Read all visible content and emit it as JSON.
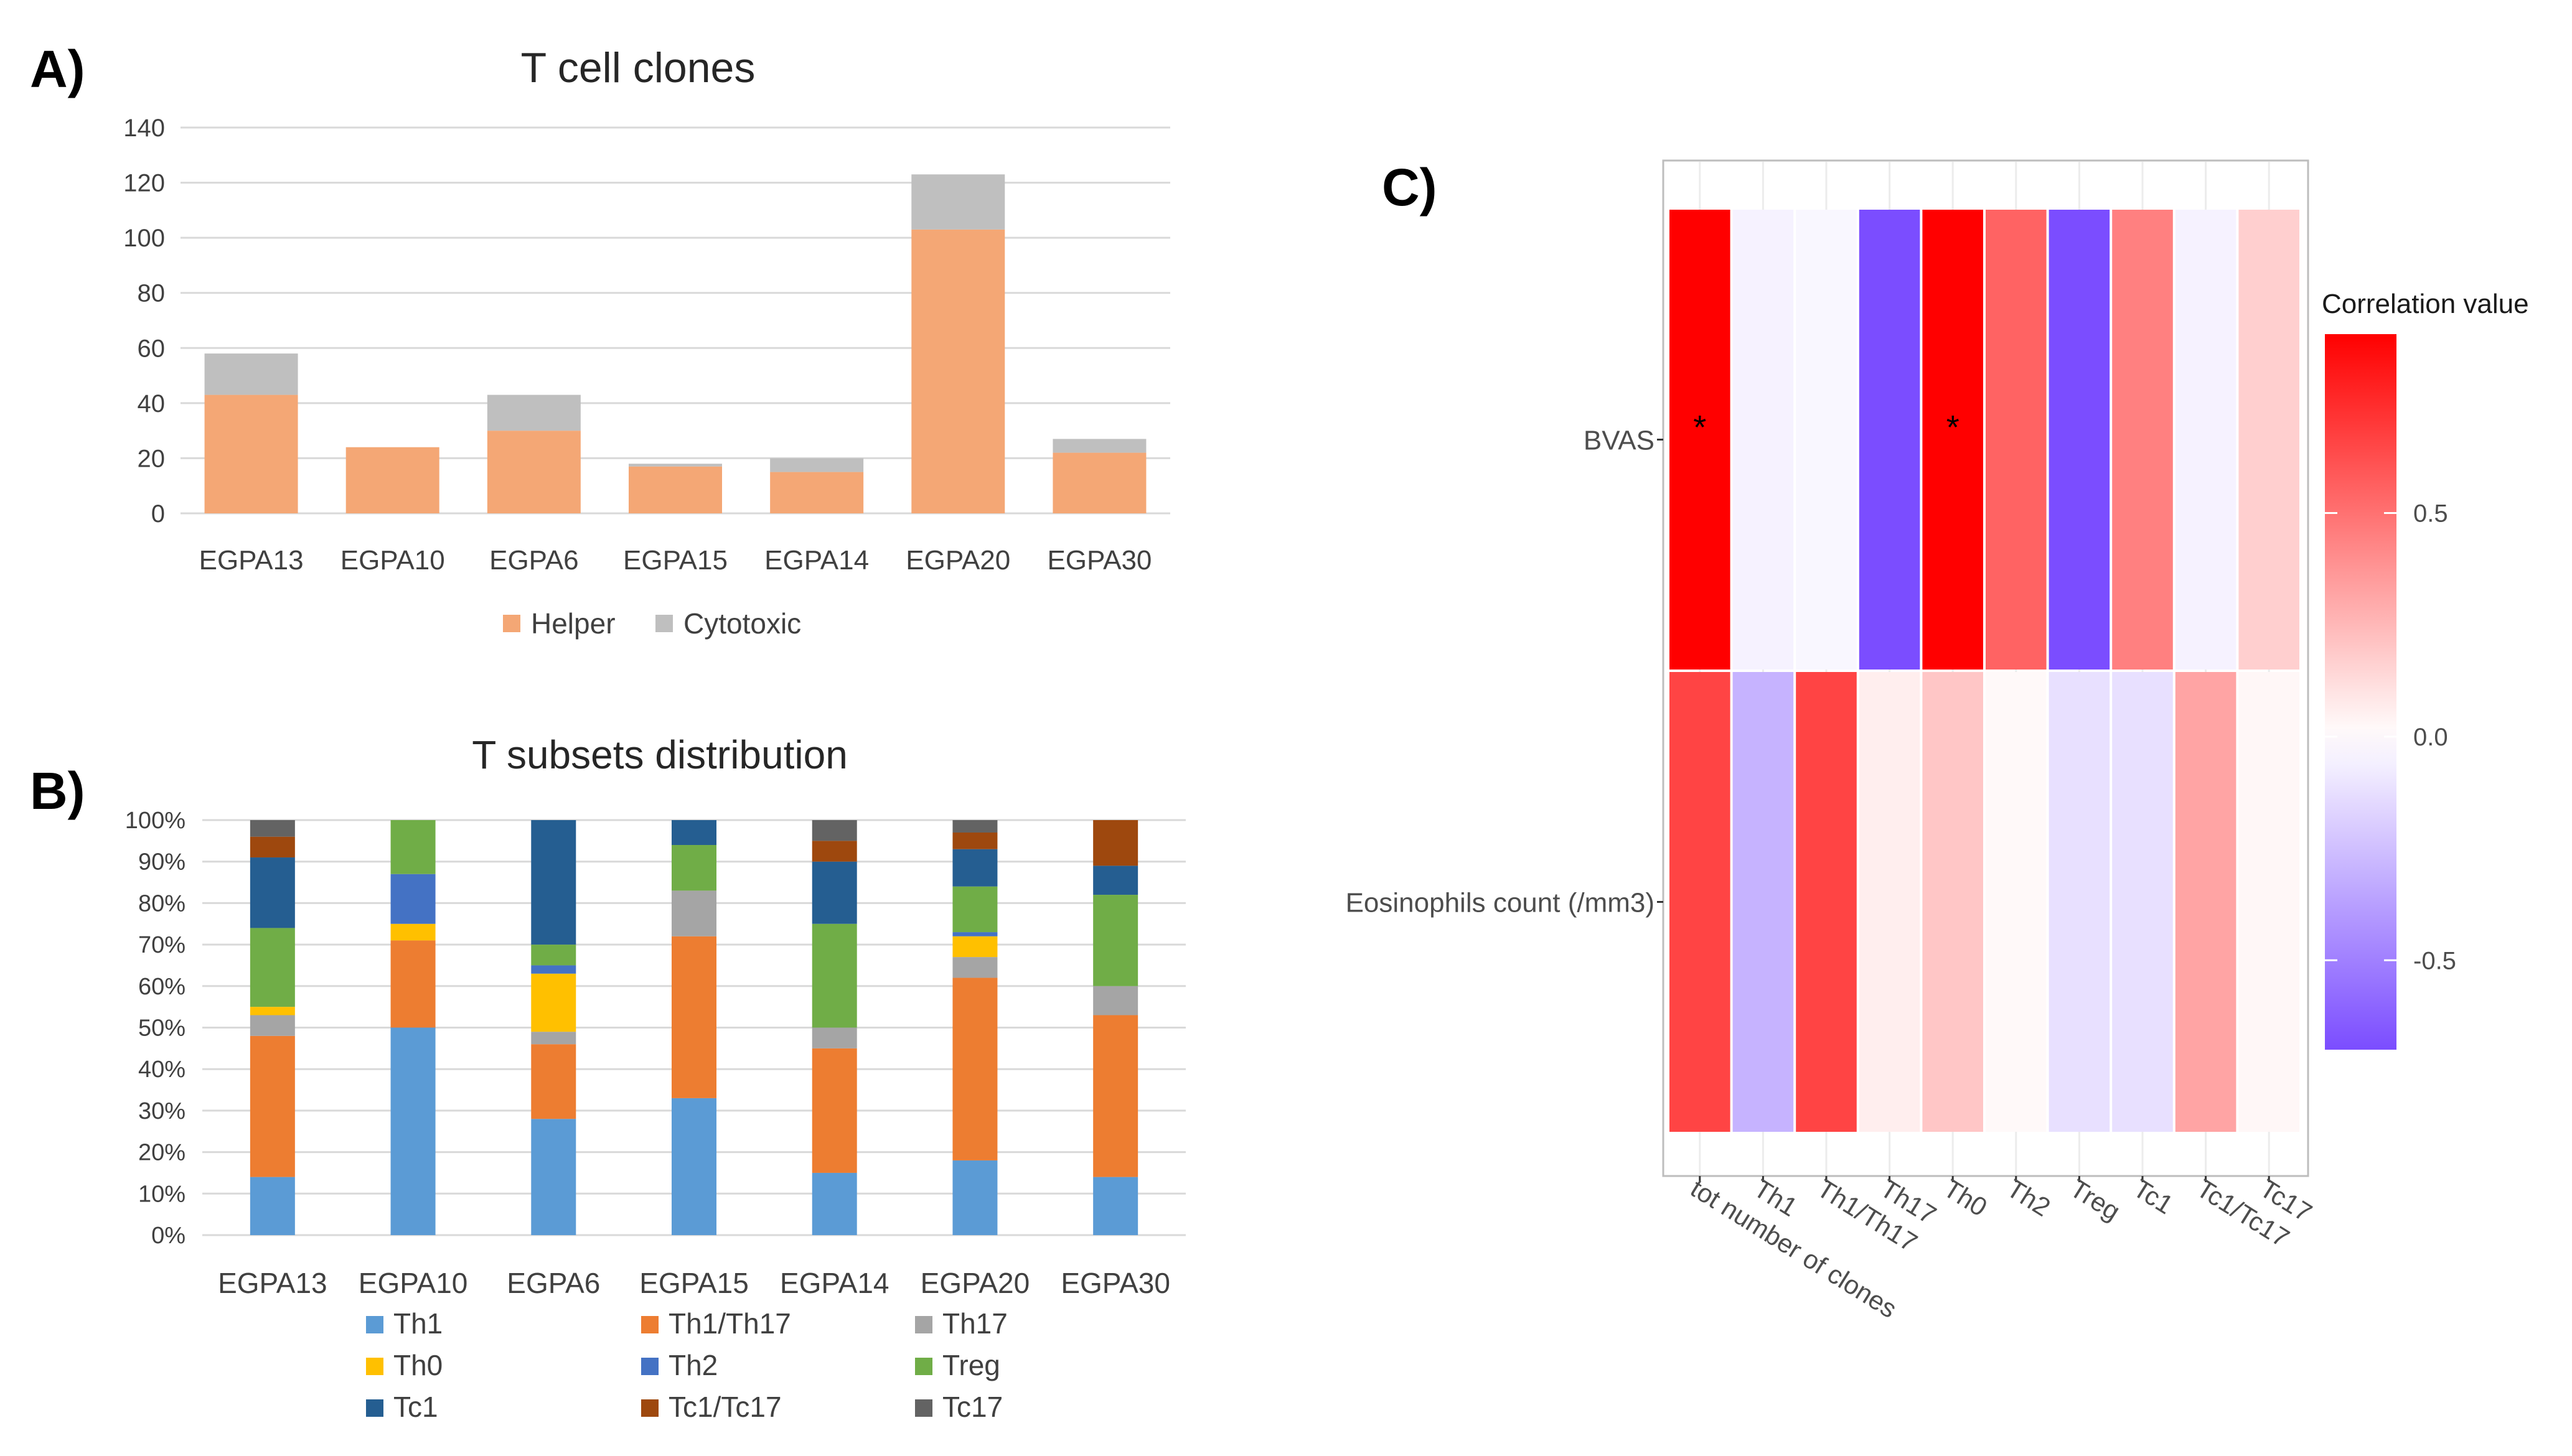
{
  "panels": {
    "a": "A)",
    "b": "B)",
    "c": "C)"
  },
  "chart_data": [
    {
      "id": "A",
      "type": "bar",
      "stacked": true,
      "title": "T cell clones",
      "categories": [
        "EGPA13",
        "EGPA10",
        "EGPA6",
        "EGPA15",
        "EGPA14",
        "EGPA20",
        "EGPA30"
      ],
      "series": [
        {
          "name": "Helper",
          "color": "#F4A775",
          "values": [
            43,
            24,
            30,
            17,
            15,
            103,
            22
          ]
        },
        {
          "name": "Cytotoxic",
          "color": "#BFBFBF",
          "values": [
            15,
            0,
            13,
            1,
            5,
            20,
            5
          ]
        }
      ],
      "ylim": [
        0,
        140
      ],
      "yticks": [
        "0",
        "20",
        "40",
        "60",
        "80",
        "100",
        "120",
        "140"
      ],
      "grid": true,
      "legend": "bottom"
    },
    {
      "id": "B",
      "type": "bar",
      "stacked": true,
      "percent": true,
      "title": "T subsets distribution",
      "categories": [
        "EGPA13",
        "EGPA10",
        "EGPA6",
        "EGPA15",
        "EGPA14",
        "EGPA20",
        "EGPA30"
      ],
      "series": [
        {
          "name": "Th1",
          "color": "#5B9BD5",
          "values": [
            14,
            50,
            28,
            33,
            15,
            18,
            14
          ]
        },
        {
          "name": "Th1/Th17",
          "color": "#ED7D31",
          "values": [
            34,
            21,
            18,
            39,
            30,
            44,
            39
          ]
        },
        {
          "name": "Th17",
          "color": "#A5A5A5",
          "values": [
            5,
            0,
            3,
            11,
            5,
            5,
            7
          ]
        },
        {
          "name": "Th0",
          "color": "#FFC000",
          "values": [
            2,
            4,
            14,
            0,
            0,
            5,
            0
          ]
        },
        {
          "name": "Th2",
          "color": "#4472C4",
          "values": [
            0,
            12,
            2,
            0,
            0,
            1,
            0
          ]
        },
        {
          "name": "Treg",
          "color": "#70AD47",
          "values": [
            19,
            13,
            5,
            11,
            25,
            11,
            22
          ]
        },
        {
          "name": "Tc1",
          "color": "#255E91",
          "values": [
            17,
            0,
            30,
            6,
            15,
            9,
            7
          ]
        },
        {
          "name": "Tc1/Tc17",
          "color": "#9E480E",
          "values": [
            5,
            0,
            0,
            0,
            5,
            4,
            11
          ]
        },
        {
          "name": "Tc17",
          "color": "#636363",
          "values": [
            4,
            0,
            0,
            0,
            5,
            3,
            0
          ]
        }
      ],
      "ylim": [
        0,
        100
      ],
      "yticks": [
        "0%",
        "10%",
        "20%",
        "30%",
        "40%",
        "50%",
        "60%",
        "70%",
        "80%",
        "90%",
        "100%"
      ],
      "grid": true,
      "legend": "bottom"
    },
    {
      "id": "C",
      "type": "heatmap",
      "columns": [
        "tot number of clones",
        "Th1",
        "Th1/Th17",
        "Th17",
        "Th0",
        "Th2",
        "Treg",
        "Tc1",
        "Tc1/Tc17",
        "Tc17"
      ],
      "rows": [
        "BVAS",
        "Eosinophils count (/mm3)"
      ],
      "values": [
        [
          0.9,
          -0.05,
          -0.03,
          -0.8,
          0.9,
          0.55,
          -0.72,
          0.45,
          -0.05,
          0.17
        ],
        [
          0.66,
          -0.3,
          0.66,
          0.06,
          0.2,
          0.02,
          -0.12,
          -0.12,
          0.32,
          0.03
        ]
      ],
      "significant": [
        [
          true,
          false,
          false,
          false,
          true,
          false,
          false,
          false,
          false,
          false
        ],
        [
          false,
          false,
          false,
          false,
          false,
          false,
          false,
          false,
          false,
          false
        ]
      ],
      "marker": "*",
      "colorbar": {
        "title": "Correlation value",
        "range": [
          -0.7,
          0.9
        ],
        "ticks": [
          {
            "value": 0.5,
            "label": "0.5"
          },
          {
            "value": 0.0,
            "label": "0.0"
          },
          {
            "value": -0.5,
            "label": "-0.5"
          }
        ],
        "low_color": "#7B4DFF",
        "mid_color": "#FFFFFF",
        "high_color": "#FF0000"
      }
    }
  ]
}
